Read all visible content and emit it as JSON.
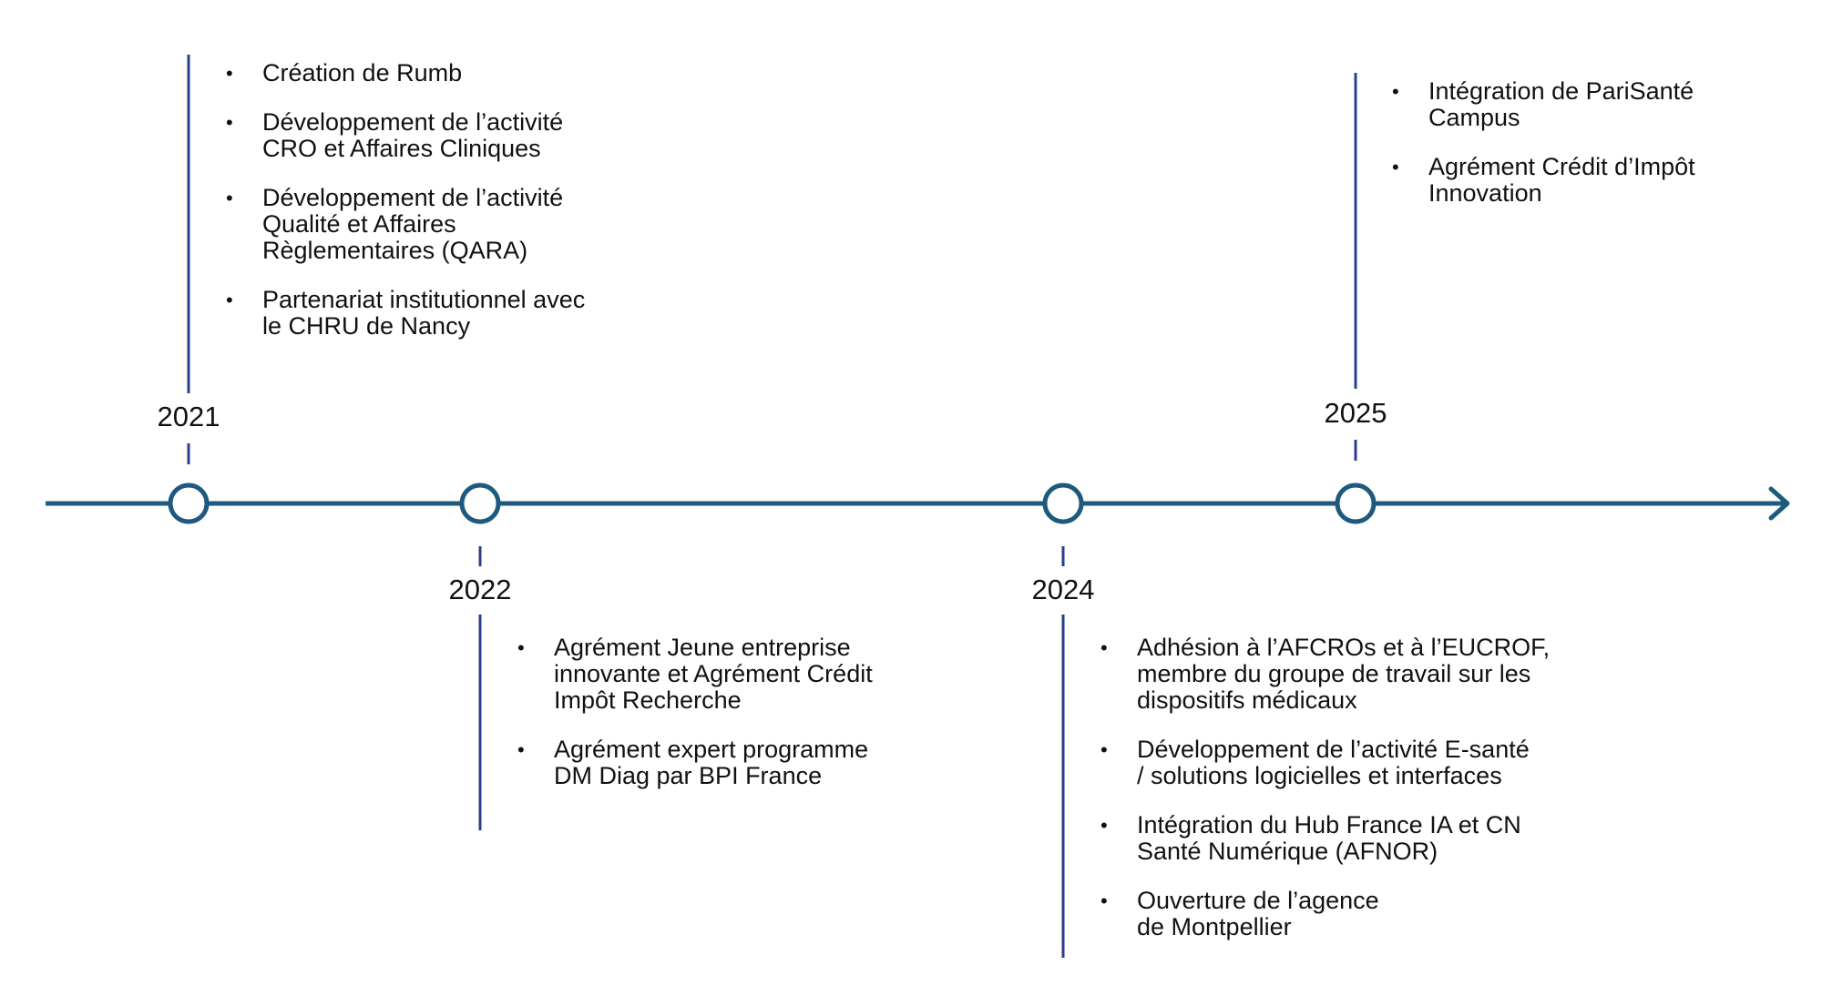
{
  "colors": {
    "axis": "#1e5a7e",
    "connector": "#2a3d8f",
    "marker_fill": "#ffffff"
  },
  "events": [
    {
      "year": "2021",
      "items": [
        "Création de Rumb",
        "Développement de l’activité\nCRO et Affaires Cliniques",
        "Développement de l’activité\nQualité et Affaires\nRèglementaires (QARA)",
        "Partenariat institutionnel avec\nle CHRU de Nancy"
      ]
    },
    {
      "year": "2022",
      "items": [
        "Agrément Jeune entreprise\ninnovante et Agrément Crédit\nImpôt Recherche",
        "Agrément expert programme\nDM Diag par BPI France"
      ]
    },
    {
      "year": "2024",
      "items": [
        "Adhésion à l’AFCROs et à l’EUCROF,\nmembre du groupe de travail sur les\ndispositifs médicaux",
        "Développement de l’activité E-santé\n/ solutions logicielles  et interfaces",
        "Intégration du Hub France IA et CN\nSanté Numérique (AFNOR)",
        "Ouverture de l’agence\nde Montpellier"
      ]
    },
    {
      "year": "2025",
      "items": [
        "Intégration de PariSanté\nCampus",
        "Agrément Crédit d’Impôt\nInnovation"
      ]
    }
  ]
}
